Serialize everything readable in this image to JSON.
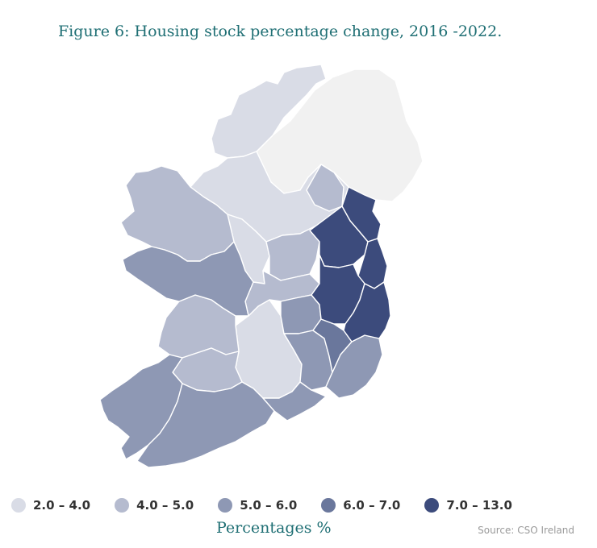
{
  "title": "Figure 6: Housing stock percentage change, 2016 -2022.",
  "legend": [
    {
      "label": "2.0 – 4.0",
      "color": "#d9dce6"
    },
    {
      "label": "4.0 – 5.0",
      "color": "#b5bbcf"
    },
    {
      "label": "5.0 – 6.0",
      "color": "#8e98b4"
    },
    {
      "label": "6.0 – 7.0",
      "color": "#6a779c"
    },
    {
      "label": "7.0 – 13.0",
      "color": "#3c4b7c"
    }
  ],
  "units_label": "Percentages %",
  "source": "Source: CSO Ireland",
  "northern_ireland_color": "#f1f1f1"
}
